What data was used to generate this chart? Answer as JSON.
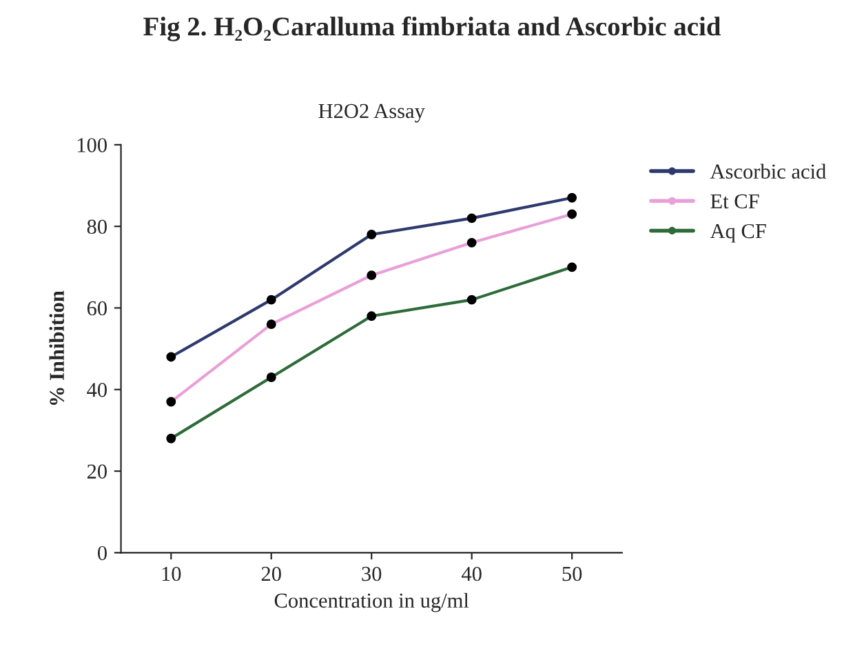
{
  "chart_data": {
    "type": "line",
    "title": "Fig 2. H₂O₂Caralluma fimbriata and Ascorbic acid",
    "subtitle": "H2O2 Assay",
    "xlabel": "Concentration in ug/ml",
    "ylabel": "% Inhibition",
    "x": [
      10,
      20,
      30,
      40,
      50
    ],
    "series": [
      {
        "name": "Ascorbic acid",
        "color": "#2e3a6e",
        "values": [
          48,
          62,
          78,
          82,
          87
        ]
      },
      {
        "name": "Et CF",
        "color": "#e8a0d8",
        "values": [
          37,
          56,
          68,
          76,
          83
        ]
      },
      {
        "name": "Aq CF",
        "color": "#2e6b3a",
        "values": [
          28,
          43,
          58,
          62,
          70
        ]
      }
    ],
    "xlim": [
      5,
      55
    ],
    "xticks": [
      10,
      20,
      30,
      40,
      50
    ],
    "ylim": [
      0,
      100
    ],
    "yticks": [
      0,
      20,
      40,
      60,
      80,
      100
    ],
    "marker": "circle",
    "line_style": "solid",
    "grid": false,
    "legend": "top right"
  }
}
